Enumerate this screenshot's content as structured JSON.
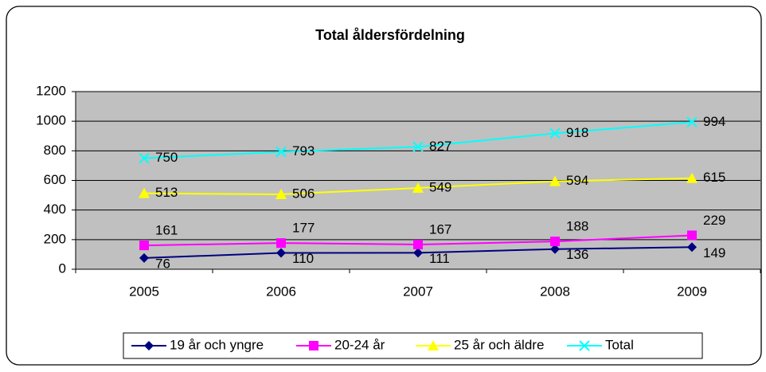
{
  "chart_data": {
    "type": "line",
    "title": "Total åldersfördelning",
    "categories": [
      "2005",
      "2006",
      "2007",
      "2008",
      "2009"
    ],
    "series": [
      {
        "name": "19 år och yngre",
        "color": "#000080",
        "marker": "diamond",
        "values": [
          76,
          110,
          111,
          136,
          149
        ]
      },
      {
        "name": "20-24 år",
        "color": "#ff00ff",
        "marker": "square",
        "values": [
          161,
          177,
          167,
          188,
          229
        ]
      },
      {
        "name": "25 år och äldre",
        "color": "#ffff00",
        "marker": "triangle",
        "values": [
          513,
          506,
          549,
          594,
          615
        ]
      },
      {
        "name": "Total",
        "color": "#00ffff",
        "marker": "x",
        "values": [
          750,
          793,
          827,
          918,
          994
        ]
      }
    ],
    "ylim": [
      0,
      1200
    ],
    "yticks": [
      0,
      200,
      400,
      600,
      800,
      1000,
      1200
    ],
    "grid": true,
    "plot_background": "#c0c0c0",
    "legend": "bottom"
  }
}
